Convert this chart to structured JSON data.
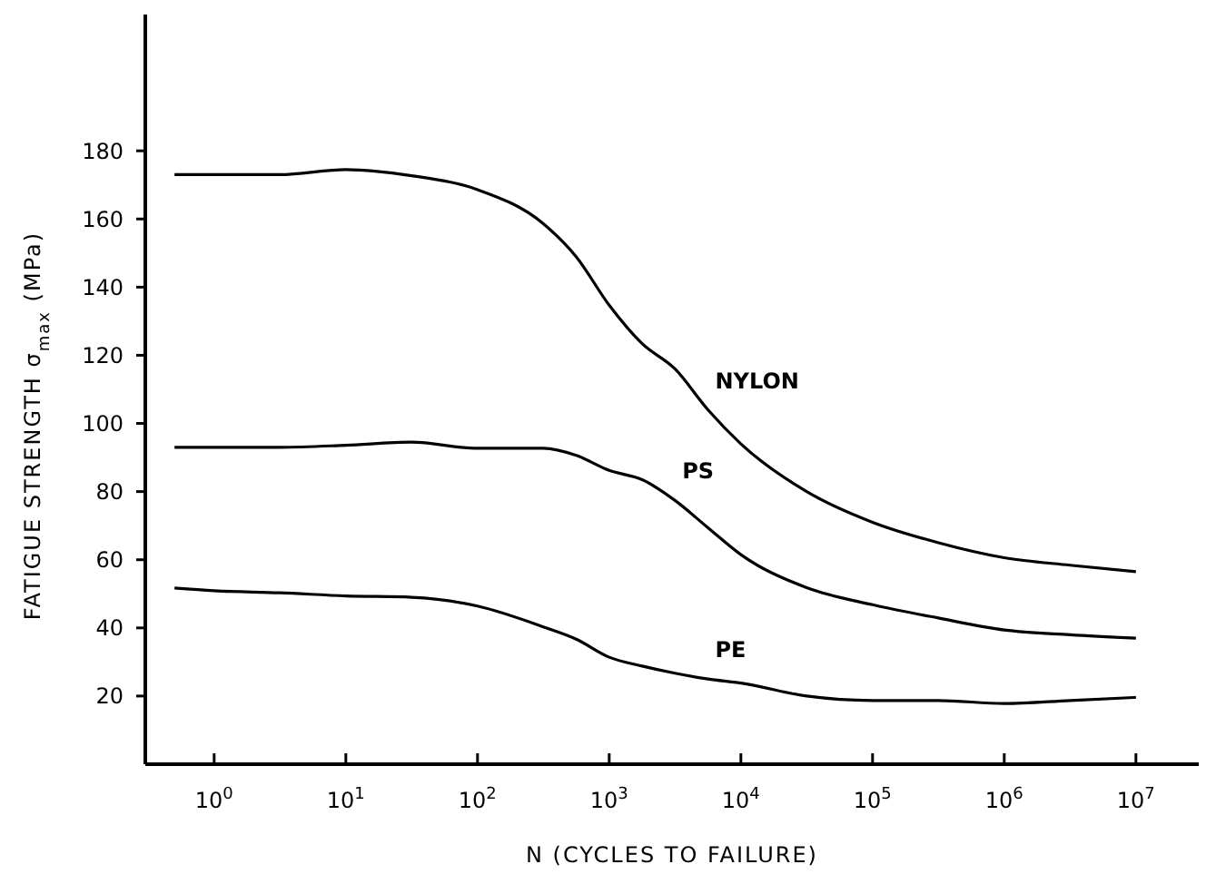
{
  "chart_data": {
    "type": "line",
    "xlabel": "N (CYCLES TO FAILURE)",
    "ylabel": "FATIGUE STRENGTH σ$_{max}$ (MPa)",
    "log": "x",
    "xlim": [
      0.3,
      30000000
    ],
    "ylim": [
      0,
      220
    ],
    "xticks": [
      {
        "value": 1,
        "label": "10$^{0}$"
      },
      {
        "value": 10,
        "label": "10$^{1}$"
      },
      {
        "value": 100,
        "label": "10$^{2}$"
      },
      {
        "value": 1000,
        "label": "10$^{3}$"
      },
      {
        "value": 10000,
        "label": "10$^{4}$"
      },
      {
        "value": 100000,
        "label": "10$^{5}$"
      },
      {
        "value": 1000000,
        "label": "10$^{6}$"
      },
      {
        "value": 10000000,
        "label": "10$^{7}$"
      }
    ],
    "yticks": [
      20,
      40,
      60,
      80,
      100,
      120,
      140,
      160,
      180
    ],
    "marker": "none",
    "line_style": "solid",
    "x": [
      0.5,
      1,
      3.16,
      10,
      31.6,
      100,
      316,
      562,
      1000,
      1780,
      3160,
      5620,
      10000,
      31600,
      100000,
      316000,
      1000000,
      3160000,
      10000000
    ],
    "series": [
      {
        "name": "NYLON",
        "color": "#000000",
        "values": [
          173,
          173,
          173,
          174.5,
          172.7,
          168.6,
          158.6,
          148.9,
          134.7,
          123.4,
          116,
          104,
          94,
          80,
          71,
          65,
          60.6,
          58.4,
          56.5
        ]
      },
      {
        "name": "PS",
        "color": "#000000",
        "values": [
          93,
          93,
          93,
          93.6,
          94.5,
          92.7,
          92.7,
          90.6,
          86.2,
          83.5,
          77.4,
          69.4,
          61.5,
          51.8,
          46.8,
          42.9,
          39.4,
          38,
          37
        ]
      },
      {
        "name": "PE",
        "color": "#000000",
        "values": [
          51.7,
          50.9,
          50.3,
          49.4,
          49,
          46.4,
          40.3,
          36.7,
          31.4,
          28.8,
          26.7,
          25,
          23.8,
          20,
          18.7,
          18.7,
          17.8,
          18.7,
          19.6
        ]
      }
    ]
  }
}
